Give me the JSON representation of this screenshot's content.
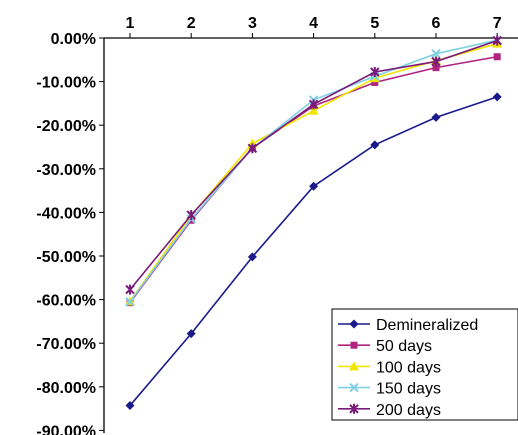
{
  "chart_data": {
    "type": "line",
    "x_ticks": [
      "1",
      "2",
      "3",
      "4",
      "5",
      "6",
      "7"
    ],
    "y_ticks": [
      "0.00%",
      "-10.00%",
      "-20.00%",
      "-30.00%",
      "-40.00%",
      "-50.00%",
      "-60.00%",
      "-70.00%",
      "-80.00%",
      "-90.00%"
    ],
    "ylim": [
      -90,
      0
    ],
    "x": [
      1,
      2,
      3,
      4,
      5,
      6,
      7
    ],
    "series": [
      {
        "name": "Demineralized",
        "color": "#1a1a8c",
        "marker": "diamond",
        "values": [
          -84.3,
          -67.8,
          -50.2,
          -34.0,
          -24.5,
          -18.2,
          -13.5
        ]
      },
      {
        "name": "50 days",
        "color": "#b0237e",
        "marker": "square",
        "values": [
          -60.7,
          -41.8,
          -25.2,
          -15.6,
          -10.2,
          -6.8,
          -4.3
        ]
      },
      {
        "name": "100 days",
        "color": "#f2e600",
        "marker": "triangle",
        "values": [
          -60.4,
          -40.7,
          -24.2,
          -16.7,
          -9.2,
          -5.2,
          -1.3
        ]
      },
      {
        "name": "150 days",
        "color": "#7fd0e3",
        "marker": "x",
        "values": [
          -60.5,
          -41.5,
          -25.3,
          -14.2,
          -8.8,
          -3.6,
          -0.5
        ]
      },
      {
        "name": "200 days",
        "color": "#7a1a7a",
        "marker": "star",
        "values": [
          -57.7,
          -40.6,
          -25.3,
          -15.2,
          -7.8,
          -5.4,
          -0.6
        ]
      }
    ],
    "legend": {
      "position": "bottom-right"
    },
    "grid": false
  }
}
